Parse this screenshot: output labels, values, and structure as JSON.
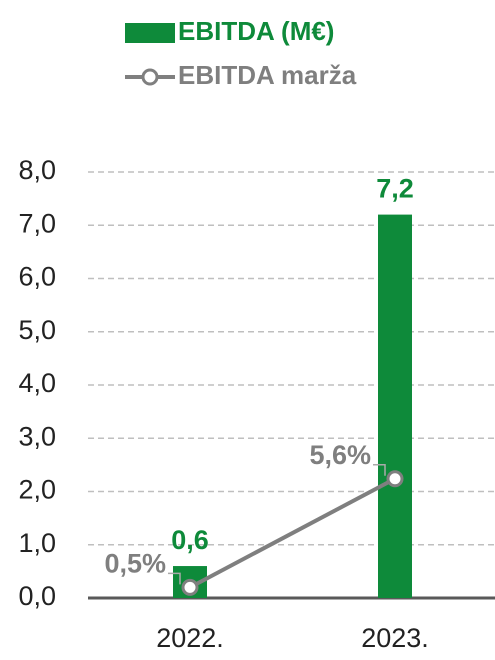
{
  "chart_data": {
    "type": "combo",
    "categories": [
      "2022.",
      "2023."
    ],
    "series": [
      {
        "name": "EBITDA (M€)",
        "type": "bar",
        "color": "#0e8a3a",
        "values": [
          0.6,
          7.2
        ],
        "value_labels": [
          "0,6",
          "7,2"
        ]
      },
      {
        "name": "EBITDA marža",
        "type": "line",
        "axis": "y2",
        "color": "#7f7f7f",
        "values": [
          0.5,
          5.6
        ],
        "value_labels": [
          "0,5%",
          "5,6%"
        ]
      }
    ],
    "ylim": [
      0,
      8
    ],
    "yticks": [
      {
        "value": 0,
        "label": "0,0"
      },
      {
        "value": 1,
        "label": "1,0"
      },
      {
        "value": 2,
        "label": "2,0"
      },
      {
        "value": 3,
        "label": "3,0"
      },
      {
        "value": 4,
        "label": "4,0"
      },
      {
        "value": 5,
        "label": "5,0"
      },
      {
        "value": 6,
        "label": "6,0"
      },
      {
        "value": 7,
        "label": "7,0"
      },
      {
        "value": 8,
        "label": "8,0"
      }
    ],
    "y2lim": [
      0,
      20
    ],
    "grid": true
  }
}
